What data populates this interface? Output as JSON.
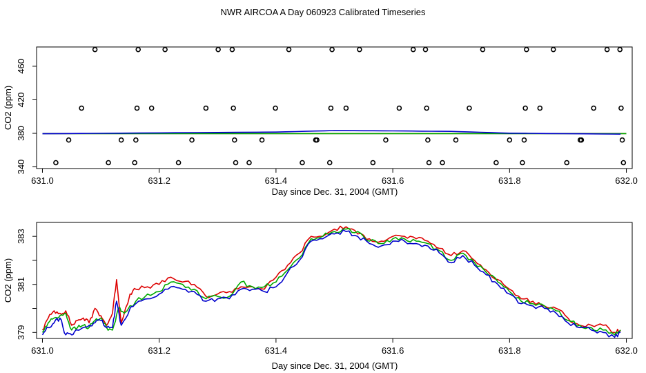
{
  "title": "NWR AIRCOA A  Day 060923  Calibrated Timeseries",
  "chart_data": [
    {
      "type": "scatter",
      "xlabel": "Day since Dec. 31, 2004 (GMT)",
      "ylabel": "CO2 (ppm)",
      "xlim": [
        630.99,
        632.01
      ],
      "ylim": [
        338,
        483
      ],
      "xticks": [
        631.0,
        631.2,
        631.4,
        631.6,
        631.8,
        632.0
      ],
      "xtick_labels": [
        "631.0",
        "631.2",
        "631.4",
        "631.6",
        "631.8",
        "632.0"
      ],
      "yticks": [
        340,
        380,
        420,
        460
      ],
      "ytick_labels": [
        "340",
        "380",
        "420",
        "460"
      ],
      "grid": false,
      "series": [
        {
          "marker": "open-circle",
          "color": "#000000",
          "points": [
            [
              631.023,
              345
            ],
            [
              631.045,
              372
            ],
            [
              631.067,
              410
            ],
            [
              631.09,
              480
            ],
            [
              631.113,
              345
            ],
            [
              631.135,
              372
            ],
            [
              631.158,
              345
            ],
            [
              631.16,
              372
            ],
            [
              631.162,
              410
            ],
            [
              631.164,
              480
            ],
            [
              631.187,
              410
            ],
            [
              631.21,
              480
            ],
            [
              631.233,
              345
            ],
            [
              631.256,
              372
            ],
            [
              631.28,
              410
            ],
            [
              631.301,
              480
            ],
            [
              631.325,
              480
            ],
            [
              631.327,
              410
            ],
            [
              631.329,
              372
            ],
            [
              631.331,
              345
            ],
            [
              631.354,
              345
            ],
            [
              631.376,
              372
            ],
            [
              631.399,
              410
            ],
            [
              631.422,
              480
            ],
            [
              631.445,
              345
            ],
            [
              631.468,
              372
            ],
            [
              631.47,
              372
            ],
            [
              631.492,
              345
            ],
            [
              631.494,
              410
            ],
            [
              631.496,
              480
            ],
            [
              631.52,
              410
            ],
            [
              631.543,
              480
            ],
            [
              631.566,
              345
            ],
            [
              631.588,
              372
            ],
            [
              631.611,
              410
            ],
            [
              631.635,
              480
            ],
            [
              631.656,
              480
            ],
            [
              631.658,
              410
            ],
            [
              631.66,
              372
            ],
            [
              631.662,
              345
            ],
            [
              631.685,
              345
            ],
            [
              631.708,
              372
            ],
            [
              631.731,
              410
            ],
            [
              631.754,
              480
            ],
            [
              631.777,
              345
            ],
            [
              631.8,
              372
            ],
            [
              631.822,
              345
            ],
            [
              631.825,
              372
            ],
            [
              631.827,
              410
            ],
            [
              631.829,
              480
            ],
            [
              631.852,
              410
            ],
            [
              631.875,
              480
            ],
            [
              631.898,
              345
            ],
            [
              631.921,
              372
            ],
            [
              631.923,
              372
            ],
            [
              631.944,
              410
            ],
            [
              631.967,
              480
            ],
            [
              631.989,
              480
            ],
            [
              631.991,
              410
            ],
            [
              631.993,
              372
            ],
            [
              631.995,
              345
            ]
          ]
        },
        {
          "color": "#dd0000",
          "anchors": [
            [
              631.0,
              379.8
            ],
            [
              632.0,
              379.8
            ]
          ]
        },
        {
          "color": "#00aa00",
          "anchors": [
            [
              631.0,
              379.7
            ],
            [
              632.0,
              379.7
            ]
          ]
        },
        {
          "color": "#0000cc",
          "anchors": [
            [
              631.0,
              379.5
            ],
            [
              631.2,
              380.5
            ],
            [
              631.4,
              381.5
            ],
            [
              631.5,
              383.3
            ],
            [
              631.6,
              382.9
            ],
            [
              631.7,
              382.3
            ],
            [
              631.8,
              380.2
            ],
            [
              631.99,
              379.0
            ]
          ]
        }
      ]
    },
    {
      "type": "line",
      "xlabel": "Day since Dec. 31, 2004 (GMT)",
      "ylabel": "CO2 (ppm)",
      "xlim": [
        630.99,
        632.01
      ],
      "ylim": [
        378.75,
        383.58
      ],
      "xticks": [
        631.0,
        631.2,
        631.4,
        631.6,
        631.8,
        632.0
      ],
      "xtick_labels": [
        "631.0",
        "631.2",
        "631.4",
        "631.6",
        "631.8",
        "632.0"
      ],
      "yticks": [
        379,
        380,
        381,
        382,
        383
      ],
      "ytick_labels": [
        "379",
        "",
        "381",
        "",
        "383"
      ],
      "grid": false,
      "series": [
        {
          "color": "#dd0000",
          "anchors": [
            [
              631.0,
              379.1
            ],
            [
              631.01,
              379.6
            ],
            [
              631.02,
              379.9
            ],
            [
              631.03,
              379.8
            ],
            [
              631.04,
              379.9
            ],
            [
              631.05,
              379.3
            ],
            [
              631.06,
              379.5
            ],
            [
              631.07,
              379.6
            ],
            [
              631.08,
              379.4
            ],
            [
              631.09,
              380.0
            ],
            [
              631.1,
              379.7
            ],
            [
              631.11,
              379.3
            ],
            [
              631.12,
              379.8
            ],
            [
              631.127,
              381.2
            ],
            [
              631.135,
              379.4
            ],
            [
              631.15,
              380.6
            ],
            [
              631.16,
              380.8
            ],
            [
              631.18,
              380.9
            ],
            [
              631.2,
              381.0
            ],
            [
              631.22,
              381.3
            ],
            [
              631.24,
              381.1
            ],
            [
              631.26,
              381.0
            ],
            [
              631.28,
              380.5
            ],
            [
              631.3,
              380.6
            ],
            [
              631.32,
              380.7
            ],
            [
              631.34,
              380.9
            ],
            [
              631.36,
              380.9
            ],
            [
              631.38,
              380.8
            ],
            [
              631.4,
              381.3
            ],
            [
              631.42,
              381.8
            ],
            [
              631.44,
              382.3
            ],
            [
              631.46,
              383.0
            ],
            [
              631.48,
              383.0
            ],
            [
              631.5,
              383.3
            ],
            [
              631.52,
              383.4
            ],
            [
              631.54,
              383.1
            ],
            [
              631.56,
              382.9
            ],
            [
              631.58,
              382.8
            ],
            [
              631.6,
              383.0
            ],
            [
              631.62,
              383.0
            ],
            [
              631.64,
              382.9
            ],
            [
              631.66,
              382.8
            ],
            [
              631.68,
              382.5
            ],
            [
              631.7,
              382.2
            ],
            [
              631.72,
              382.4
            ],
            [
              631.74,
              382.0
            ],
            [
              631.76,
              381.6
            ],
            [
              631.78,
              381.2
            ],
            [
              631.8,
              380.8
            ],
            [
              631.82,
              380.4
            ],
            [
              631.84,
              380.3
            ],
            [
              631.86,
              380.1
            ],
            [
              631.88,
              380.0
            ],
            [
              631.9,
              379.6
            ],
            [
              631.92,
              379.3
            ],
            [
              631.94,
              379.3
            ],
            [
              631.96,
              379.3
            ],
            [
              631.98,
              379.0
            ],
            [
              631.99,
              379.1
            ]
          ]
        },
        {
          "color": "#00aa00",
          "anchors": [
            [
              631.0,
              379.0
            ],
            [
              631.01,
              379.4
            ],
            [
              631.02,
              379.6
            ],
            [
              631.03,
              379.7
            ],
            [
              631.04,
              379.8
            ],
            [
              631.05,
              379.1
            ],
            [
              631.06,
              379.2
            ],
            [
              631.07,
              379.3
            ],
            [
              631.08,
              379.2
            ],
            [
              631.09,
              379.5
            ],
            [
              631.1,
              379.6
            ],
            [
              631.11,
              379.2
            ],
            [
              631.12,
              379.1
            ],
            [
              631.13,
              380.0
            ],
            [
              631.14,
              379.8
            ],
            [
              631.16,
              380.3
            ],
            [
              631.18,
              380.6
            ],
            [
              631.2,
              380.7
            ],
            [
              631.22,
              381.1
            ],
            [
              631.24,
              381.0
            ],
            [
              631.26,
              380.8
            ],
            [
              631.28,
              380.4
            ],
            [
              631.3,
              380.5
            ],
            [
              631.32,
              380.5
            ],
            [
              631.34,
              381.1
            ],
            [
              631.36,
              380.9
            ],
            [
              631.38,
              380.9
            ],
            [
              631.4,
              381.1
            ],
            [
              631.42,
              381.6
            ],
            [
              631.44,
              382.1
            ],
            [
              631.46,
              382.9
            ],
            [
              631.48,
              383.0
            ],
            [
              631.5,
              383.2
            ],
            [
              631.52,
              383.3
            ],
            [
              631.54,
              383.2
            ],
            [
              631.56,
              382.8
            ],
            [
              631.58,
              382.7
            ],
            [
              631.6,
              382.9
            ],
            [
              631.62,
              382.9
            ],
            [
              631.64,
              382.8
            ],
            [
              631.66,
              382.7
            ],
            [
              631.68,
              382.4
            ],
            [
              631.7,
              382.0
            ],
            [
              631.72,
              382.3
            ],
            [
              631.74,
              381.9
            ],
            [
              631.76,
              381.5
            ],
            [
              631.78,
              381.1
            ],
            [
              631.8,
              380.7
            ],
            [
              631.82,
              380.3
            ],
            [
              631.84,
              380.2
            ],
            [
              631.86,
              380.1
            ],
            [
              631.88,
              379.9
            ],
            [
              631.9,
              379.5
            ],
            [
              631.92,
              379.3
            ],
            [
              631.94,
              379.2
            ],
            [
              631.96,
              379.1
            ],
            [
              631.98,
              378.9
            ],
            [
              631.99,
              379.1
            ]
          ]
        },
        {
          "color": "#0000cc",
          "anchors": [
            [
              631.0,
              378.9
            ],
            [
              631.01,
              379.2
            ],
            [
              631.02,
              379.4
            ],
            [
              631.03,
              379.6
            ],
            [
              631.04,
              378.9
            ],
            [
              631.05,
              378.9
            ],
            [
              631.06,
              379.1
            ],
            [
              631.07,
              379.2
            ],
            [
              631.08,
              379.3
            ],
            [
              631.09,
              379.4
            ],
            [
              631.1,
              379.5
            ],
            [
              631.11,
              379.2
            ],
            [
              631.12,
              379.2
            ],
            [
              631.127,
              380.3
            ],
            [
              631.135,
              379.3
            ],
            [
              631.15,
              380.0
            ],
            [
              631.16,
              380.2
            ],
            [
              631.18,
              380.4
            ],
            [
              631.2,
              380.6
            ],
            [
              631.22,
              380.9
            ],
            [
              631.24,
              380.8
            ],
            [
              631.26,
              380.7
            ],
            [
              631.28,
              380.3
            ],
            [
              631.3,
              380.4
            ],
            [
              631.32,
              380.4
            ],
            [
              631.34,
              380.8
            ],
            [
              631.36,
              380.8
            ],
            [
              631.38,
              380.7
            ],
            [
              631.4,
              380.9
            ],
            [
              631.42,
              381.5
            ],
            [
              631.44,
              382.0
            ],
            [
              631.46,
              382.8
            ],
            [
              631.48,
              382.9
            ],
            [
              631.5,
              383.1
            ],
            [
              631.52,
              383.2
            ],
            [
              631.54,
              383.0
            ],
            [
              631.56,
              382.7
            ],
            [
              631.58,
              382.6
            ],
            [
              631.6,
              382.8
            ],
            [
              631.62,
              382.8
            ],
            [
              631.64,
              382.7
            ],
            [
              631.66,
              382.6
            ],
            [
              631.68,
              382.3
            ],
            [
              631.7,
              381.9
            ],
            [
              631.72,
              382.2
            ],
            [
              631.74,
              381.8
            ],
            [
              631.76,
              381.4
            ],
            [
              631.78,
              381.0
            ],
            [
              631.8,
              380.6
            ],
            [
              631.82,
              380.2
            ],
            [
              631.84,
              380.1
            ],
            [
              631.86,
              380.0
            ],
            [
              631.88,
              379.8
            ],
            [
              631.9,
              379.4
            ],
            [
              631.92,
              379.2
            ],
            [
              631.94,
              379.1
            ],
            [
              631.96,
              379.0
            ],
            [
              631.98,
              378.8
            ],
            [
              631.99,
              379.0
            ]
          ]
        }
      ]
    }
  ]
}
